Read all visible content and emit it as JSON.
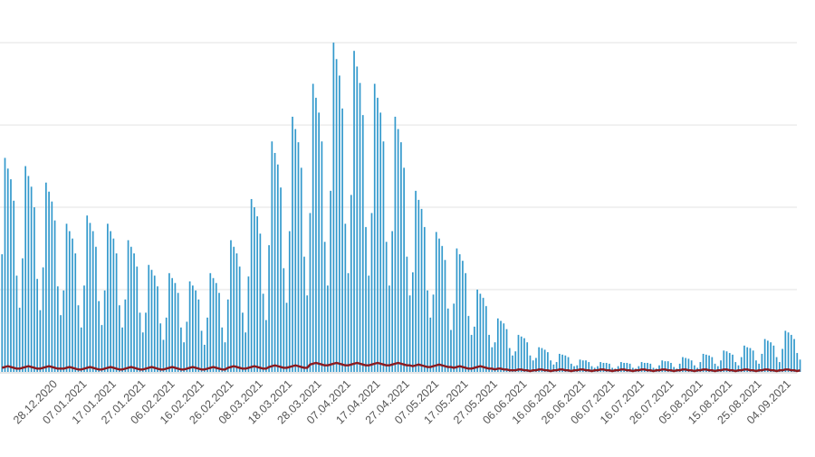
{
  "chart_data": {
    "type": "bar-line",
    "ylim": [
      0,
      4.1
    ],
    "gridlines": [
      1,
      2,
      3,
      4
    ],
    "grid": true,
    "categories": [
      null,
      null,
      null,
      null,
      null,
      null,
      null,
      null,
      null,
      null,
      null,
      null,
      null,
      null,
      null,
      null,
      null,
      null,
      null,
      "28.12.2020",
      null,
      null,
      null,
      null,
      null,
      null,
      null,
      null,
      null,
      "07.01.2021",
      null,
      null,
      null,
      null,
      null,
      null,
      null,
      null,
      null,
      "17.01.2021",
      null,
      null,
      null,
      null,
      null,
      null,
      null,
      null,
      null,
      "27.01.2021",
      null,
      null,
      null,
      null,
      null,
      null,
      null,
      null,
      null,
      "06.02.2021",
      null,
      null,
      null,
      null,
      null,
      null,
      null,
      null,
      null,
      "16.02.2021",
      null,
      null,
      null,
      null,
      null,
      null,
      null,
      null,
      null,
      "26.02.2021",
      null,
      null,
      null,
      null,
      null,
      null,
      null,
      null,
      null,
      "08.03.2021",
      null,
      null,
      null,
      null,
      null,
      null,
      null,
      null,
      null,
      "18.03.2021",
      null,
      null,
      null,
      null,
      null,
      null,
      null,
      null,
      null,
      "28.03.2021",
      null,
      null,
      null,
      null,
      null,
      null,
      null,
      null,
      null,
      "07.04.2021",
      null,
      null,
      null,
      null,
      null,
      null,
      null,
      null,
      null,
      "17.04.2021",
      null,
      null,
      null,
      null,
      null,
      null,
      null,
      null,
      null,
      "27.04.2021",
      null,
      null,
      null,
      null,
      null,
      null,
      null,
      null,
      null,
      "07.05.2021",
      null,
      null,
      null,
      null,
      null,
      null,
      null,
      null,
      null,
      "17.05.2021",
      null,
      null,
      null,
      null,
      null,
      null,
      null,
      null,
      null,
      "27.05.2021",
      null,
      null,
      null,
      null,
      null,
      null,
      null,
      null,
      null,
      "06.06.2021",
      null,
      null,
      null,
      null,
      null,
      null,
      null,
      null,
      null,
      "16.06.2021",
      null,
      null,
      null,
      null,
      null,
      null,
      null,
      null,
      null,
      "26.06.2021",
      null,
      null,
      null,
      null,
      null,
      null,
      null,
      null,
      null,
      "06.07.2021",
      null,
      null,
      null,
      null,
      null,
      null,
      null,
      null,
      null,
      "16.07.2021",
      null,
      null,
      null,
      null,
      null,
      null,
      null,
      null,
      null,
      "26.07.2021",
      null,
      null,
      null,
      null,
      null,
      null,
      null,
      null,
      null,
      "05.08.2021",
      null,
      null,
      null,
      null,
      null,
      null,
      null,
      null,
      null,
      "15.08.2021",
      null,
      null,
      null,
      null,
      null,
      null,
      null,
      null,
      null,
      "25.08.2021",
      null,
      null,
      null,
      null,
      null,
      null,
      null,
      null,
      null,
      "04.09.2021",
      null,
      null,
      null
    ],
    "series": [
      {
        "type": "bar",
        "color": "#3399cc",
        "values": [
          1.43,
          2.6,
          2.47,
          2.34,
          2.08,
          1.17,
          0.78,
          1.38,
          2.5,
          2.38,
          2.25,
          2.0,
          1.13,
          0.75,
          1.27,
          2.3,
          2.19,
          2.07,
          1.84,
          1.04,
          0.69,
          0.99,
          1.8,
          1.71,
          1.62,
          1.44,
          0.81,
          0.54,
          1.05,
          1.9,
          1.81,
          1.71,
          1.52,
          0.86,
          0.57,
          0.99,
          1.8,
          1.71,
          1.62,
          1.44,
          0.81,
          0.54,
          0.88,
          1.6,
          1.52,
          1.44,
          1.28,
          0.72,
          0.48,
          0.72,
          1.3,
          1.24,
          1.17,
          1.04,
          0.59,
          0.39,
          0.66,
          1.2,
          1.14,
          1.08,
          0.96,
          0.54,
          0.36,
          0.61,
          1.1,
          1.05,
          0.99,
          0.88,
          0.5,
          0.33,
          0.66,
          1.2,
          1.14,
          1.08,
          0.96,
          0.54,
          0.36,
          0.88,
          1.6,
          1.52,
          1.44,
          1.28,
          0.72,
          0.48,
          1.16,
          2.1,
          2.0,
          1.89,
          1.68,
          0.95,
          0.63,
          1.54,
          2.8,
          2.66,
          2.52,
          2.24,
          1.26,
          0.84,
          1.71,
          3.1,
          2.95,
          2.79,
          2.48,
          1.4,
          0.93,
          1.93,
          3.5,
          3.33,
          3.15,
          2.8,
          1.58,
          1.05,
          2.2,
          4.0,
          3.8,
          3.6,
          3.2,
          1.8,
          1.2,
          2.15,
          3.9,
          3.71,
          3.51,
          3.12,
          1.76,
          1.17,
          1.93,
          3.5,
          3.33,
          3.15,
          2.8,
          1.58,
          1.05,
          1.71,
          3.1,
          2.95,
          2.79,
          2.48,
          1.4,
          0.93,
          1.21,
          2.2,
          2.09,
          1.98,
          1.76,
          0.99,
          0.66,
          0.94,
          1.7,
          1.62,
          1.53,
          1.36,
          0.77,
          0.51,
          0.83,
          1.5,
          1.43,
          1.35,
          1.2,
          0.68,
          0.45,
          0.55,
          1.0,
          0.95,
          0.9,
          0.8,
          0.45,
          0.3,
          0.36,
          0.65,
          0.62,
          0.59,
          0.52,
          0.29,
          0.2,
          0.25,
          0.45,
          0.43,
          0.41,
          0.36,
          0.2,
          0.14,
          0.17,
          0.3,
          0.29,
          0.27,
          0.24,
          0.14,
          0.09,
          0.12,
          0.22,
          0.21,
          0.2,
          0.18,
          0.1,
          0.07,
          0.08,
          0.15,
          0.14,
          0.14,
          0.12,
          0.07,
          0.05,
          0.07,
          0.12,
          0.11,
          0.11,
          0.1,
          0.05,
          0.04,
          0.07,
          0.12,
          0.11,
          0.11,
          0.1,
          0.05,
          0.04,
          0.07,
          0.12,
          0.11,
          0.11,
          0.1,
          0.05,
          0.04,
          0.08,
          0.14,
          0.13,
          0.13,
          0.11,
          0.06,
          0.04,
          0.1,
          0.18,
          0.17,
          0.16,
          0.14,
          0.08,
          0.05,
          0.12,
          0.22,
          0.21,
          0.2,
          0.18,
          0.1,
          0.07,
          0.14,
          0.26,
          0.25,
          0.23,
          0.21,
          0.12,
          0.08,
          0.18,
          0.32,
          0.3,
          0.29,
          0.26,
          0.14,
          0.1,
          0.22,
          0.4,
          0.38,
          0.36,
          0.32,
          0.18,
          0.12,
          0.28,
          0.5,
          0.48,
          0.45,
          0.4,
          0.23,
          0.15
        ]
      },
      {
        "type": "line",
        "color": "#8b1a1f",
        "values": [
          0.05,
          0.06,
          0.07,
          0.06,
          0.05,
          0.04,
          0.04,
          0.05,
          0.06,
          0.07,
          0.06,
          0.05,
          0.04,
          0.04,
          0.05,
          0.06,
          0.07,
          0.06,
          0.05,
          0.04,
          0.04,
          0.04,
          0.05,
          0.06,
          0.05,
          0.04,
          0.03,
          0.03,
          0.04,
          0.05,
          0.06,
          0.05,
          0.04,
          0.03,
          0.03,
          0.04,
          0.05,
          0.06,
          0.05,
          0.04,
          0.03,
          0.03,
          0.04,
          0.05,
          0.06,
          0.05,
          0.04,
          0.03,
          0.03,
          0.04,
          0.05,
          0.06,
          0.05,
          0.04,
          0.03,
          0.03,
          0.04,
          0.05,
          0.06,
          0.05,
          0.04,
          0.03,
          0.03,
          0.04,
          0.05,
          0.06,
          0.05,
          0.04,
          0.03,
          0.03,
          0.04,
          0.05,
          0.06,
          0.05,
          0.04,
          0.03,
          0.03,
          0.05,
          0.06,
          0.07,
          0.06,
          0.05,
          0.04,
          0.04,
          0.05,
          0.06,
          0.07,
          0.06,
          0.05,
          0.04,
          0.04,
          0.06,
          0.07,
          0.08,
          0.07,
          0.06,
          0.05,
          0.05,
          0.06,
          0.07,
          0.08,
          0.07,
          0.06,
          0.05,
          0.05,
          0.09,
          0.1,
          0.11,
          0.1,
          0.09,
          0.08,
          0.08,
          0.09,
          0.1,
          0.11,
          0.1,
          0.09,
          0.08,
          0.08,
          0.09,
          0.1,
          0.11,
          0.1,
          0.09,
          0.08,
          0.08,
          0.09,
          0.1,
          0.11,
          0.1,
          0.09,
          0.08,
          0.08,
          0.09,
          0.1,
          0.11,
          0.1,
          0.09,
          0.08,
          0.08,
          0.07,
          0.08,
          0.09,
          0.08,
          0.07,
          0.06,
          0.06,
          0.07,
          0.08,
          0.09,
          0.08,
          0.07,
          0.06,
          0.06,
          0.05,
          0.06,
          0.07,
          0.06,
          0.05,
          0.04,
          0.04,
          0.05,
          0.06,
          0.07,
          0.06,
          0.05,
          0.04,
          0.04,
          0.03,
          0.04,
          0.04,
          0.03,
          0.03,
          0.02,
          0.02,
          0.02,
          0.03,
          0.03,
          0.02,
          0.02,
          0.01,
          0.02,
          0.02,
          0.03,
          0.03,
          0.02,
          0.02,
          0.01,
          0.02,
          0.02,
          0.03,
          0.03,
          0.02,
          0.02,
          0.01,
          0.02,
          0.02,
          0.03,
          0.03,
          0.02,
          0.02,
          0.01,
          0.02,
          0.02,
          0.03,
          0.03,
          0.02,
          0.02,
          0.01,
          0.02,
          0.02,
          0.03,
          0.03,
          0.02,
          0.02,
          0.01,
          0.02,
          0.02,
          0.03,
          0.03,
          0.02,
          0.02,
          0.01,
          0.02,
          0.02,
          0.03,
          0.03,
          0.02,
          0.02,
          0.01,
          0.02,
          0.02,
          0.03,
          0.03,
          0.02,
          0.02,
          0.01,
          0.02,
          0.02,
          0.03,
          0.03,
          0.02,
          0.02,
          0.01,
          0.02,
          0.02,
          0.03,
          0.03,
          0.02,
          0.02,
          0.01,
          0.02,
          0.02,
          0.03,
          0.03,
          0.02,
          0.02,
          0.01,
          0.02,
          0.02,
          0.03,
          0.03,
          0.02,
          0.02,
          0.01,
          0.02,
          0.02,
          0.03,
          0.03,
          0.02,
          0.02,
          0.01,
          0.02
        ]
      }
    ]
  }
}
